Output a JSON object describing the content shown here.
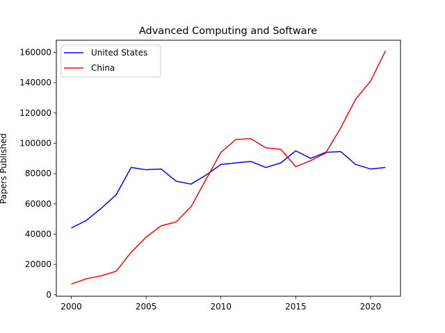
{
  "chart_data": {
    "type": "line",
    "title": "Advanced Computing and Software",
    "xlabel": "",
    "ylabel": "Papers Published",
    "x": [
      2000,
      2001,
      2002,
      2003,
      2004,
      2005,
      2006,
      2007,
      2008,
      2009,
      2010,
      2011,
      2012,
      2013,
      2014,
      2015,
      2016,
      2017,
      2018,
      2019,
      2020,
      2021
    ],
    "xlim": [
      1999,
      2022
    ],
    "ylim": [
      -1000,
      168000
    ],
    "xticks": [
      2000,
      2005,
      2010,
      2015,
      2020
    ],
    "yticks": [
      0,
      20000,
      40000,
      60000,
      80000,
      100000,
      120000,
      140000,
      160000
    ],
    "grid": false,
    "legend": "top-left",
    "series": [
      {
        "name": "United States",
        "color": "#0000ff",
        "values": [
          44000,
          49000,
          57000,
          66000,
          84000,
          82500,
          83000,
          75000,
          73000,
          79000,
          86000,
          87000,
          88000,
          84000,
          87000,
          95000,
          90000,
          94000,
          94500,
          86000,
          83000,
          84000
        ]
      },
      {
        "name": "China",
        "color": "#ff0000",
        "values": [
          7000,
          10500,
          12500,
          15500,
          28000,
          38000,
          45500,
          48000,
          58000,
          76000,
          94000,
          102500,
          103000,
          97000,
          96000,
          84500,
          88500,
          93500,
          110000,
          129000,
          141000,
          161000
        ]
      }
    ]
  }
}
